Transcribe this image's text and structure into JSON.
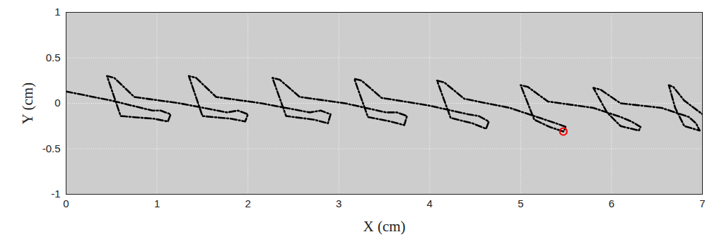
{
  "chart_data": {
    "type": "line",
    "xlabel": "X (cm)",
    "ylabel": "Y (cm)",
    "xlim": [
      0,
      7
    ],
    "ylim": [
      -1,
      1
    ],
    "xticks": [
      0,
      1,
      2,
      3,
      4,
      5,
      6,
      7
    ],
    "yticks": [
      -1,
      -0.5,
      0,
      0.5,
      1
    ],
    "grid": true,
    "series": [
      {
        "color": "#000000",
        "line_style": "dashdot",
        "marker": "none",
        "x": [
          0,
          0.5,
          0.95,
          1.04,
          1.15,
          1.12,
          0.97,
          0.6,
          0.45,
          0.53,
          0.75,
          1.25,
          1.77,
          1.89,
          2.0,
          1.97,
          1.82,
          1.5,
          1.35,
          1.43,
          1.65,
          2.15,
          2.68,
          2.8,
          2.91,
          2.88,
          2.73,
          2.42,
          2.27,
          2.35,
          2.57,
          3.07,
          3.52,
          3.64,
          3.75,
          3.72,
          3.57,
          3.32,
          3.17,
          3.25,
          3.47,
          3.97,
          4.42,
          4.54,
          4.65,
          4.62,
          4.47,
          4.23,
          4.08,
          4.16,
          4.38,
          4.88,
          5.27,
          5.39,
          5.5,
          5.47,
          5.32,
          5.15,
          5.0,
          5.08,
          5.3,
          5.8,
          6.1,
          6.22,
          6.32,
          6.3,
          6.1,
          5.95,
          5.8,
          5.88,
          6.1,
          6.55,
          6.85,
          6.93,
          6.97,
          6.8,
          6.7,
          6.63,
          6.68,
          6.8,
          7.0
        ],
        "values": [
          0.13,
          0.03,
          -0.08,
          -0.08,
          -0.12,
          -0.2,
          -0.17,
          -0.14,
          0.3,
          0.28,
          0.07,
          0.0,
          -0.1,
          -0.08,
          -0.12,
          -0.2,
          -0.17,
          -0.14,
          0.3,
          0.28,
          0.07,
          0.0,
          -0.1,
          -0.08,
          -0.12,
          -0.22,
          -0.18,
          -0.14,
          0.28,
          0.26,
          0.07,
          0.0,
          -0.1,
          -0.1,
          -0.14,
          -0.24,
          -0.2,
          -0.15,
          0.27,
          0.25,
          0.06,
          -0.02,
          -0.12,
          -0.14,
          -0.2,
          -0.28,
          -0.22,
          -0.16,
          0.25,
          0.23,
          0.05,
          -0.05,
          -0.18,
          -0.22,
          -0.26,
          -0.31,
          -0.26,
          -0.18,
          0.2,
          0.18,
          0.02,
          -0.05,
          -0.15,
          -0.2,
          -0.26,
          -0.3,
          -0.25,
          -0.1,
          0.17,
          0.15,
          0.0,
          -0.05,
          -0.15,
          -0.22,
          -0.3,
          -0.25,
          -0.05,
          0.2,
          0.18,
          0.03,
          -0.12
        ]
      },
      {
        "color": "#ff0000",
        "line_style": "none",
        "marker": "circle",
        "x": [
          5.47
        ],
        "values": [
          -0.31
        ]
      }
    ]
  }
}
